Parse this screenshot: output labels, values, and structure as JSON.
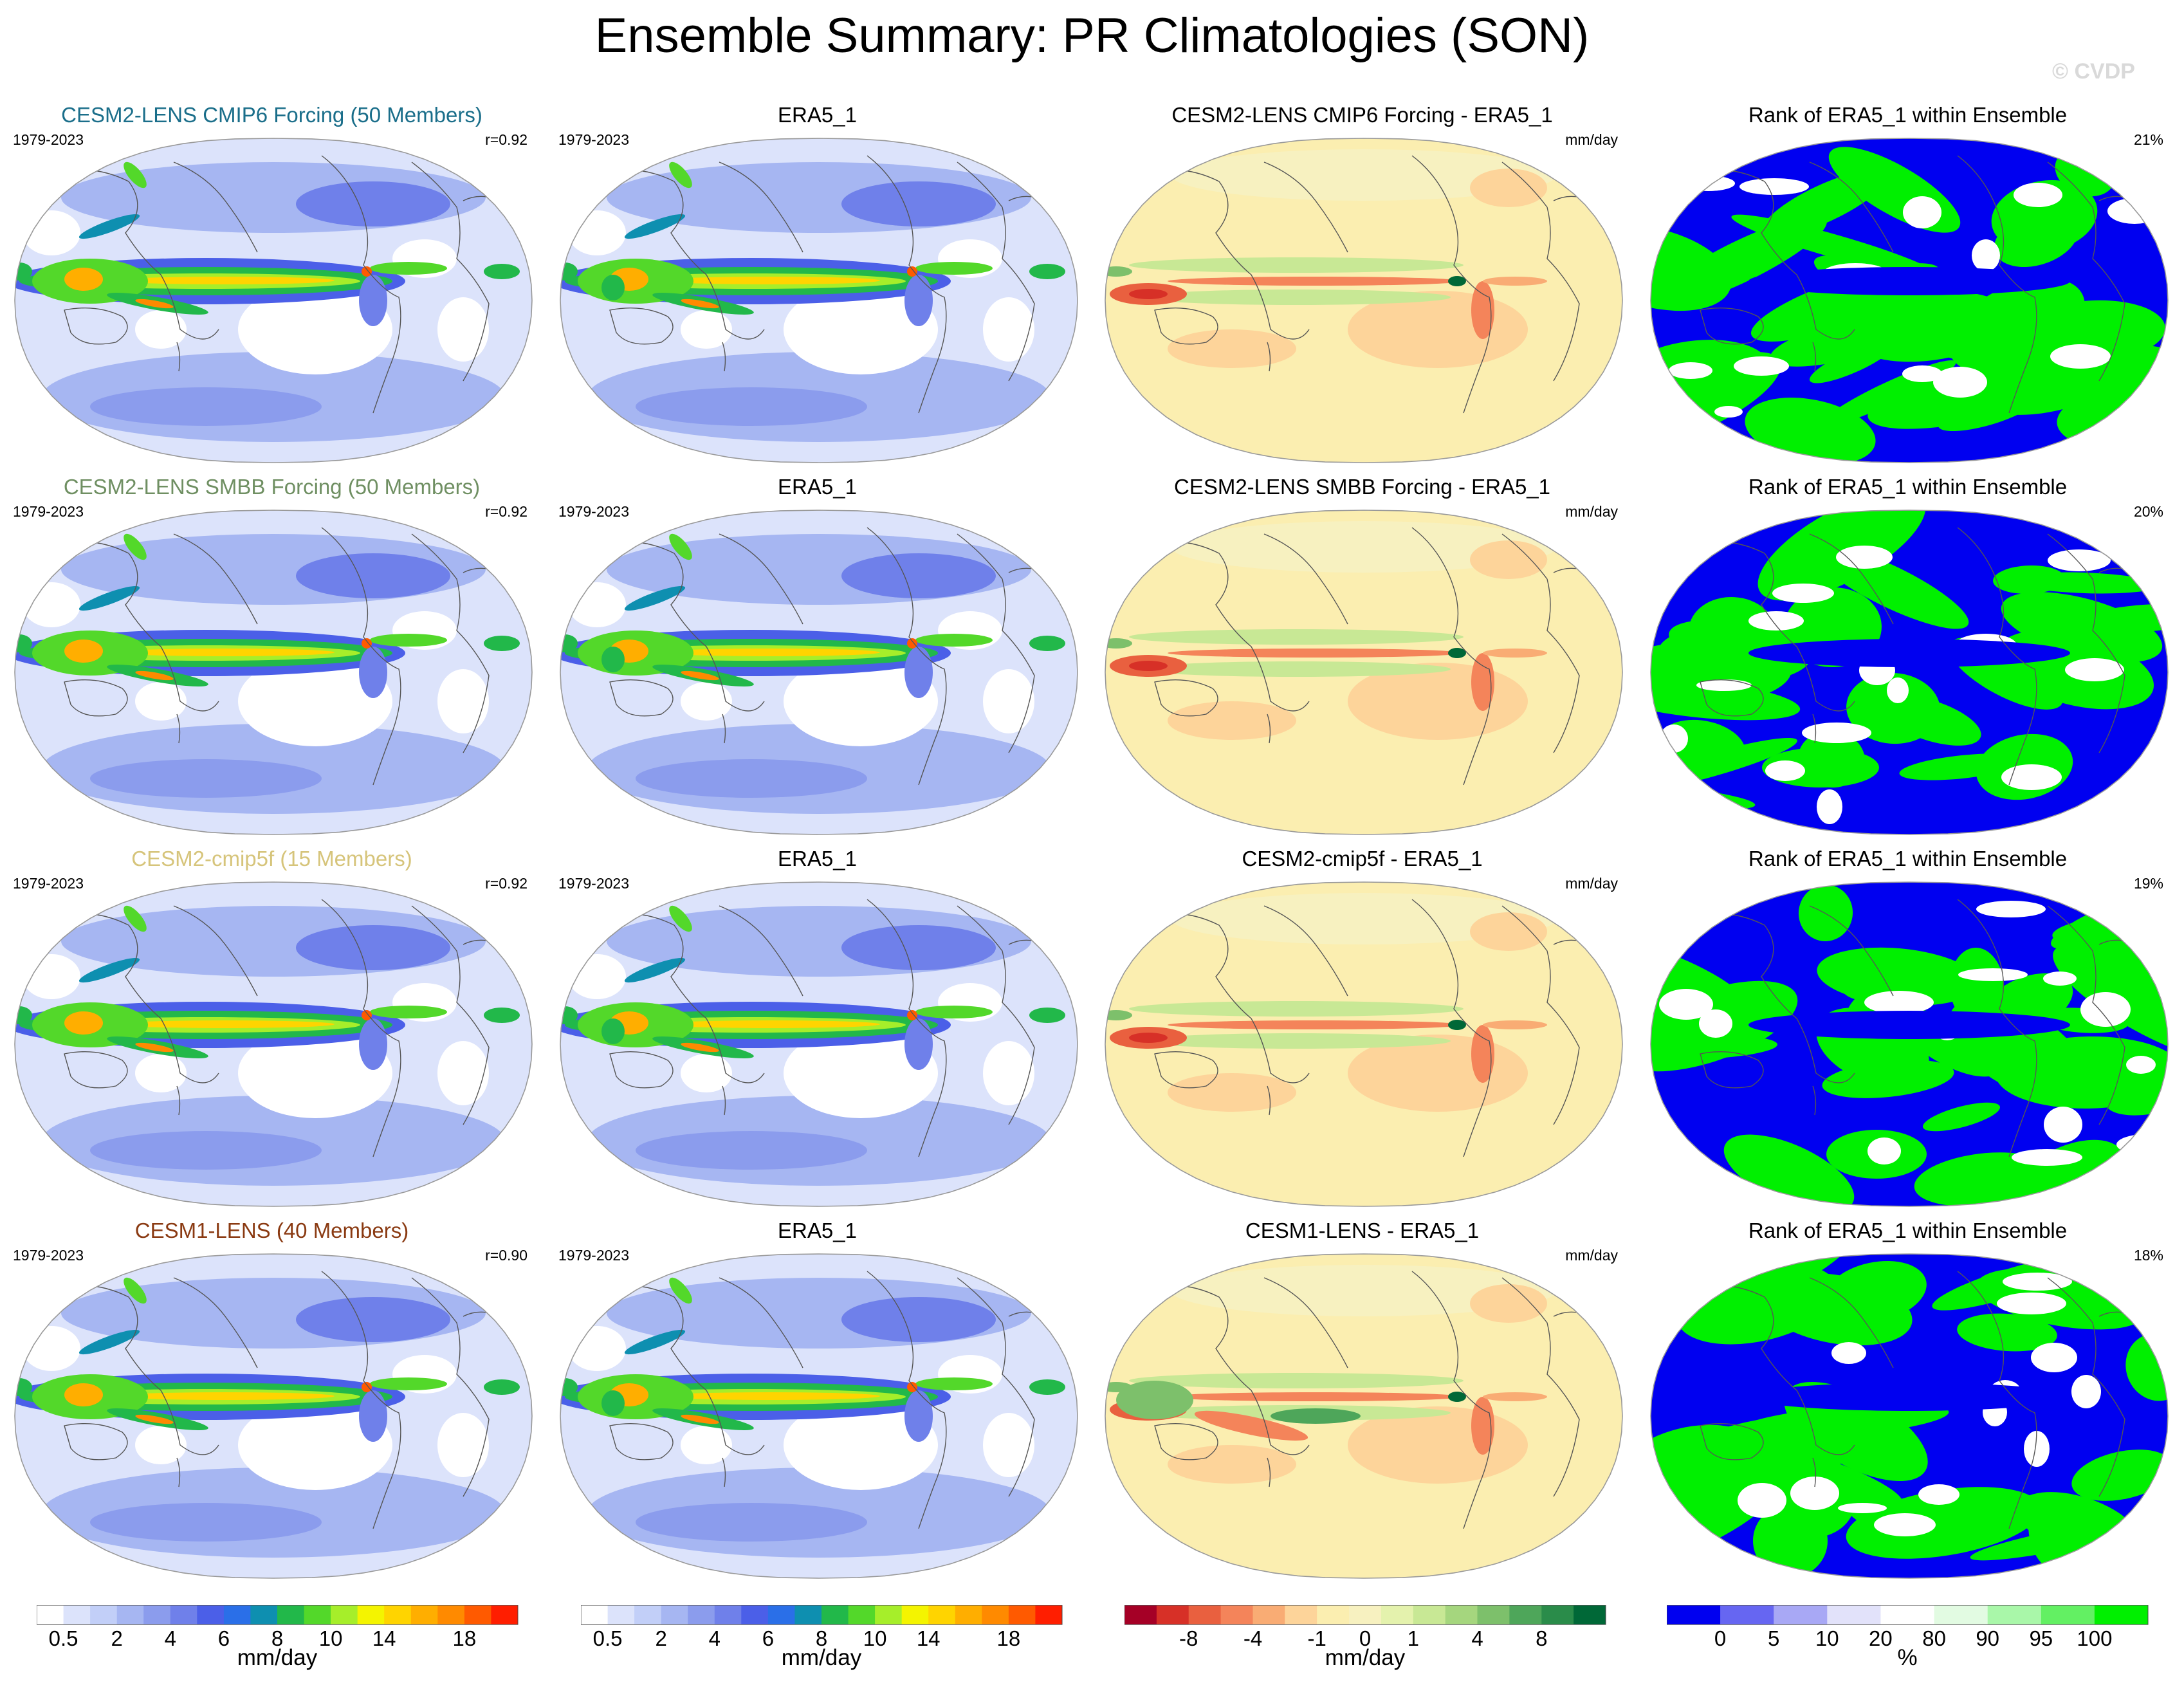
{
  "title": "Ensemble Summary: PR Climatologies (SON)",
  "watermark": "© CVDP",
  "rows": [
    {
      "model_title": "CESM2-LENS CMIP6 Forcing (50 Members)",
      "model_color": "#1a6e8a",
      "years": "1979-2023",
      "corr": "r=0.92",
      "obs_title": "ERA5_1",
      "obs_years": "1979-2023",
      "diff_title": "CESM2-LENS CMIP6 Forcing - ERA5_1",
      "diff_units": "mm/day",
      "rank_title": "Rank of ERA5_1 within Ensemble",
      "rank_pct": "21%"
    },
    {
      "model_title": "CESM2-LENS SMBB Forcing (50 Members)",
      "model_color": "#6f8f62",
      "years": "1979-2023",
      "corr": "r=0.92",
      "obs_title": "ERA5_1",
      "obs_years": "1979-2023",
      "diff_title": "CESM2-LENS SMBB Forcing - ERA5_1",
      "diff_units": "mm/day",
      "rank_title": "Rank of ERA5_1 within Ensemble",
      "rank_pct": "20%"
    },
    {
      "model_title": "CESM2-cmip5f (15 Members)",
      "model_color": "#d6c47a",
      "years": "1979-2023",
      "corr": "r=0.92",
      "obs_title": "ERA5_1",
      "obs_years": "1979-2023",
      "diff_title": "CESM2-cmip5f - ERA5_1",
      "diff_units": "mm/day",
      "rank_title": "Rank of ERA5_1 within Ensemble",
      "rank_pct": "19%"
    },
    {
      "model_title": "CESM1-LENS (40 Members)",
      "model_color": "#8a3a12",
      "years": "1979-2023",
      "corr": "r=0.90",
      "obs_title": "ERA5_1",
      "obs_years": "1979-2023",
      "diff_title": "CESM1-LENS - ERA5_1",
      "diff_units": "mm/day",
      "rank_title": "Rank of ERA5_1 within Ensemble",
      "rank_pct": "18%"
    }
  ],
  "chart_data": {
    "type": "heatmap",
    "projection": "global equal-area (Robinson-like), Pacific-centered",
    "season": "SON",
    "colorbars": [
      {
        "units": "mm/day",
        "tick_labels": [
          "0.5",
          "2",
          "4",
          "6",
          "8",
          "10",
          "14",
          "18"
        ],
        "colors": [
          "#ffffff",
          "#dce3fb",
          "#c2cff8",
          "#a6b6f2",
          "#8b9ced",
          "#6f80ea",
          "#4b5fe8",
          "#2a6fe8",
          "#0e8fb0",
          "#22b84a",
          "#53d82a",
          "#a6ee2a",
          "#f4f400",
          "#ffd400",
          "#ffae00",
          "#ff8a00",
          "#ff5a00",
          "#ff1e00"
        ]
      },
      {
        "units": "mm/day",
        "tick_labels": [
          "0.5",
          "2",
          "4",
          "6",
          "8",
          "10",
          "14",
          "18"
        ],
        "colors": [
          "#ffffff",
          "#dce3fb",
          "#c2cff8",
          "#a6b6f2",
          "#8b9ced",
          "#6f80ea",
          "#4b5fe8",
          "#2a6fe8",
          "#0e8fb0",
          "#22b84a",
          "#53d82a",
          "#a6ee2a",
          "#f4f400",
          "#ffd400",
          "#ffae00",
          "#ff8a00",
          "#ff5a00",
          "#ff1e00"
        ]
      },
      {
        "units": "mm/day",
        "tick_labels": [
          "-8",
          "-4",
          "-1",
          "0",
          "1",
          "4",
          "8"
        ],
        "colors": [
          "#a50026",
          "#d73027",
          "#e9603f",
          "#f4845a",
          "#f9ac74",
          "#fdd49a",
          "#fbeeb0",
          "#f7f1c0",
          "#e4f2ad",
          "#c8e895",
          "#a5d67e",
          "#7dc06b",
          "#4ea65a",
          "#2a8c4a",
          "#006837"
        ]
      },
      {
        "units": "%",
        "tick_labels": [
          "0",
          "5",
          "10",
          "20",
          "80",
          "90",
          "95",
          "100"
        ],
        "colors": [
          "#0000f0",
          "#6666f2",
          "#a8a8f5",
          "#e2e2fa",
          "#ffffff",
          "#e2fbe2",
          "#a9f7a9",
          "#63f063",
          "#00f000"
        ]
      }
    ]
  }
}
